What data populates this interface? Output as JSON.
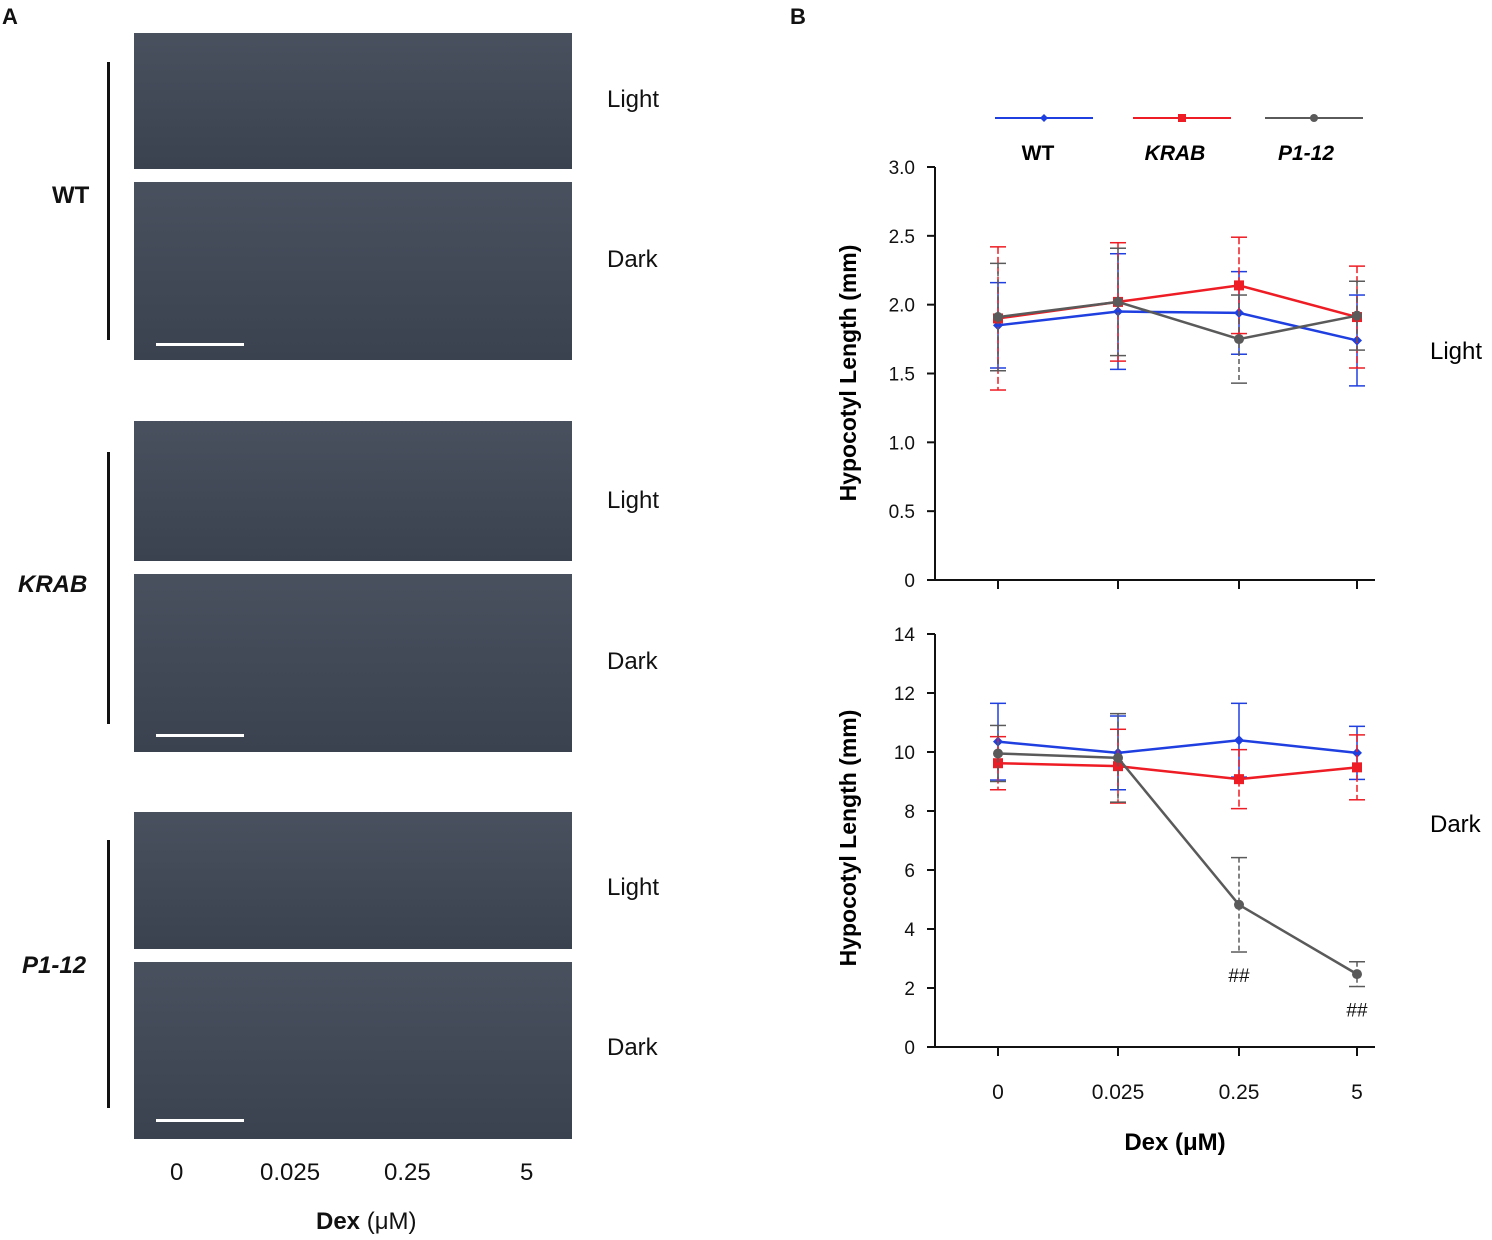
{
  "panel_a": {
    "label": "A",
    "genotypes": [
      {
        "name": "WT",
        "italic": false
      },
      {
        "name": "KRAB",
        "italic": true
      },
      {
        "name": "P1-12",
        "italic": true
      }
    ],
    "conditions": [
      "Light",
      "Dark"
    ],
    "doses": [
      "0",
      "0.025",
      "0.25",
      "5"
    ],
    "xlabel_bold": "Dex",
    "xlabel_unit": "(μM)"
  },
  "panel_b": {
    "label": "B"
  },
  "colors": {
    "WT": "#1f3fe0",
    "KRAB": "#ee1c24",
    "P1-12": "#5a5a5a"
  },
  "chart_data": [
    {
      "type": "line",
      "title": "",
      "condition_label": "Light",
      "xlabel": "Dex (μM)",
      "ylabel": "Hypocotyl Length (mm)",
      "categories": [
        "0",
        "0.025",
        "0.25",
        "5"
      ],
      "ylim": [
        0,
        3.0
      ],
      "yticks": [
        "0",
        "0.5",
        "1.0",
        "1.5",
        "2.0",
        "2.5",
        "3.0"
      ],
      "legend": "top",
      "series": [
        {
          "name": "WT",
          "marker": "diamond",
          "values": [
            1.85,
            1.95,
            1.94,
            1.74
          ],
          "errors": [
            0.31,
            0.42,
            0.3,
            0.33
          ]
        },
        {
          "name": "KRAB",
          "marker": "square",
          "values": [
            1.9,
            2.02,
            2.14,
            1.91
          ],
          "errors": [
            0.52,
            0.43,
            0.35,
            0.37
          ]
        },
        {
          "name": "P1-12",
          "marker": "circle",
          "values": [
            1.91,
            2.02,
            1.75,
            1.92
          ],
          "errors": [
            0.39,
            0.39,
            0.32,
            0.25
          ]
        }
      ],
      "annotations": []
    },
    {
      "type": "line",
      "title": "",
      "condition_label": "Dark",
      "xlabel": "Dex (μM)",
      "ylabel": "Hypocotyl Length (mm)",
      "categories": [
        "0",
        "0.025",
        "0.25",
        "5"
      ],
      "ylim": [
        0,
        14
      ],
      "yticks": [
        "0",
        "2",
        "4",
        "6",
        "8",
        "10",
        "12",
        "14"
      ],
      "series": [
        {
          "name": "WT",
          "marker": "diamond",
          "values": [
            10.35,
            9.97,
            10.4,
            9.97
          ],
          "errors": [
            1.3,
            1.25,
            1.25,
            0.9
          ]
        },
        {
          "name": "KRAB",
          "marker": "square",
          "values": [
            9.62,
            9.52,
            9.08,
            9.48
          ],
          "errors": [
            0.9,
            1.25,
            1.0,
            1.1
          ]
        },
        {
          "name": "P1-12",
          "marker": "circle",
          "values": [
            9.95,
            9.8,
            4.82,
            2.47
          ],
          "errors": [
            0.95,
            1.5,
            1.6,
            0.42
          ]
        }
      ],
      "annotations": [
        {
          "category": "0.25",
          "text": "##"
        },
        {
          "category": "5",
          "text": "##"
        }
      ]
    }
  ]
}
